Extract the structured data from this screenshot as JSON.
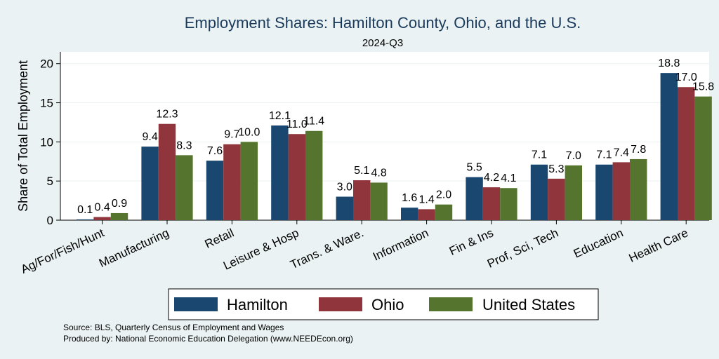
{
  "chart_data": {
    "type": "bar",
    "title": "Employment Shares: Hamilton County, Ohio, and the U.S.",
    "subtitle": "2024-Q3",
    "ylabel": "Share of Total Employment",
    "xlabel": "",
    "ylim": [
      0,
      21.5
    ],
    "yticks": [
      0,
      5,
      10,
      15,
      20
    ],
    "categories": [
      "Ag/For/Fish/Hunt",
      "Manufacturing",
      "Retail",
      "Leisure & Hosp",
      "Trans. & Ware.",
      "Information",
      "Fin & Ins",
      "Prof, Sci, Tech",
      "Education",
      "Health Care"
    ],
    "series": [
      {
        "name": "Hamilton",
        "color": "#1a476f",
        "values": [
          0.1,
          9.4,
          7.6,
          12.1,
          3.0,
          1.6,
          5.5,
          7.1,
          7.1,
          18.8
        ],
        "labels": [
          "0.1",
          "9.4",
          "7.6",
          "12.1",
          "3.0",
          "1.6",
          "5.5",
          "7.1",
          "7.1",
          "18.8"
        ]
      },
      {
        "name": "Ohio",
        "color": "#90353b",
        "values": [
          0.4,
          12.3,
          9.7,
          11.0,
          5.1,
          1.4,
          4.2,
          5.3,
          7.4,
          17.0
        ],
        "labels": [
          "0.4",
          "12.3",
          "9.7",
          "11.0",
          "5.1",
          "1.4",
          "4.2",
          "5.3",
          "7.4",
          "17.0"
        ]
      },
      {
        "name": "United States",
        "color": "#55752f",
        "values": [
          0.9,
          8.3,
          10.0,
          11.4,
          4.8,
          2.0,
          4.1,
          7.0,
          7.8,
          15.8
        ],
        "labels": [
          "0.9",
          "8.3",
          "10.0",
          "11.4",
          "4.8",
          "2.0",
          "4.1",
          "7.0",
          "7.8",
          "15.8"
        ]
      }
    ],
    "legend": "bottom",
    "grid": true
  },
  "footer": {
    "source": "Source: BLS, Quarterly Census of Employment and Wages",
    "produced": "Produced by: National Economic Education Delegation (www.NEEDEcon.org)"
  }
}
